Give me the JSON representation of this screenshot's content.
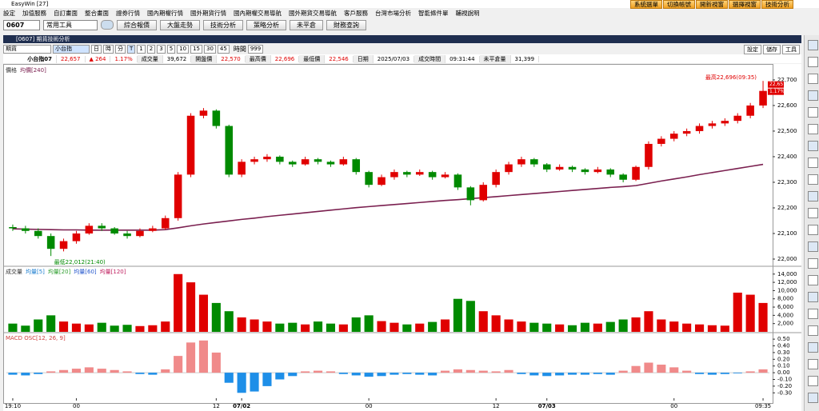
{
  "window": {
    "title": "EasyWin  [27]"
  },
  "menu": [
    "設定",
    "加值服務",
    "自訂畫面",
    "整合畫面",
    "證券行情",
    "國內期權行情",
    "國外期貨行情",
    "國內期權交易導航",
    "國外期貨交易導航",
    "客戶服務",
    "台灣市場分析",
    "智能條件單",
    "輔視說明"
  ],
  "menu_right": [
    "系統選單",
    "切換帳號",
    "開新視窗",
    "選擇視窗",
    "技術分析"
  ],
  "toolbar": {
    "code": "0607",
    "tools": "常用工具",
    "buttons": [
      "綜合報價",
      "大盤走勢",
      "技術分析",
      "策略分析",
      "未平倉",
      "財務查詢"
    ]
  },
  "panel": {
    "title": "[0607] 期貨技術分析",
    "product_type": "期貨",
    "symbol": "小台指",
    "periods": [
      "日",
      "時",
      "分",
      "T",
      "1",
      "2",
      "3",
      "5",
      "10",
      "15",
      "30",
      "45"
    ],
    "count_label": "時間",
    "count": "999",
    "actions": [
      "設定",
      "儲存",
      "工具"
    ]
  },
  "quote": {
    "name": "小台指07",
    "last": "22,657",
    "change": "▲ 264",
    "pct": "1.17%",
    "fields": [
      {
        "label": "成交量",
        "value": "39,672"
      },
      {
        "label": "開盤價",
        "value": "22,570"
      },
      {
        "label": "最高價",
        "value": "22,696"
      },
      {
        "label": "最低價",
        "value": "22,546"
      },
      {
        "label": "日期",
        "value": "2025/07/03"
      },
      {
        "label": "成交時間",
        "value": "09:31:44"
      },
      {
        "label": "未平倉量",
        "value": "31,399"
      }
    ]
  },
  "chart_data": [
    {
      "type": "candlestick",
      "title": "價格",
      "up_color": "#e00000",
      "down_color": "#008a00",
      "open": [
        22125,
        22120,
        22110,
        22090,
        22040,
        22070,
        22100,
        22130,
        22120,
        22100,
        22090,
        22110,
        22120,
        22160,
        22330,
        22560,
        22580,
        22520,
        22330,
        22380,
        22390,
        22400,
        22380,
        22370,
        22390,
        22380,
        22370,
        22390,
        22340,
        22290,
        22320,
        22340,
        22330,
        22340,
        22320,
        22330,
        22280,
        22230,
        22290,
        22340,
        22370,
        22390,
        22370,
        22350,
        22360,
        22350,
        22340,
        22350,
        22330,
        22310,
        22360,
        22450,
        22470,
        22490,
        22500,
        22520,
        22530,
        22540,
        22560,
        22600
      ],
      "high": [
        22135,
        22130,
        22120,
        22100,
        22080,
        22110,
        22140,
        22140,
        22125,
        22110,
        22120,
        22130,
        22170,
        22340,
        22570,
        22590,
        22585,
        22525,
        22390,
        22400,
        22410,
        22405,
        22385,
        22400,
        22395,
        22385,
        22400,
        22395,
        22345,
        22330,
        22350,
        22345,
        22350,
        22345,
        22340,
        22335,
        22285,
        22300,
        22350,
        22380,
        22400,
        22395,
        22375,
        22370,
        22365,
        22355,
        22360,
        22355,
        22335,
        22365,
        22460,
        22480,
        22500,
        22510,
        22530,
        22540,
        22550,
        22570,
        22610,
        22696
      ],
      "low": [
        22110,
        22100,
        22080,
        22012,
        22030,
        22060,
        22095,
        22110,
        22095,
        22080,
        22085,
        22105,
        22115,
        22150,
        22320,
        22550,
        22510,
        22320,
        22320,
        22370,
        22380,
        22370,
        22360,
        22365,
        22370,
        22360,
        22365,
        22330,
        22280,
        22285,
        22310,
        22320,
        22325,
        22310,
        22315,
        22270,
        22210,
        22225,
        22280,
        22330,
        22360,
        22360,
        22340,
        22345,
        22340,
        22330,
        22335,
        22320,
        22300,
        22305,
        22350,
        22440,
        22460,
        22480,
        22490,
        22510,
        22520,
        22530,
        22550,
        22590
      ],
      "close": [
        22120,
        22110,
        22090,
        22040,
        22070,
        22100,
        22130,
        22120,
        22100,
        22090,
        22110,
        22120,
        22160,
        22330,
        22560,
        22580,
        22520,
        22330,
        22380,
        22390,
        22400,
        22380,
        22370,
        22390,
        22380,
        22370,
        22390,
        22340,
        22290,
        22320,
        22340,
        22330,
        22340,
        22320,
        22330,
        22280,
        22230,
        22290,
        22340,
        22370,
        22390,
        22370,
        22350,
        22360,
        22350,
        22340,
        22350,
        22330,
        22310,
        22360,
        22450,
        22470,
        22490,
        22500,
        22520,
        22530,
        22540,
        22560,
        22600,
        22657
      ],
      "series": [
        {
          "name": "均價[240]",
          "color": "#7a1f4f",
          "values": [
            22118,
            22117,
            22116,
            22115,
            22114,
            22114,
            22113,
            22113,
            22113,
            22113,
            22113,
            22113,
            22115,
            22122,
            22130,
            22137,
            22143,
            22149,
            22155,
            22160,
            22166,
            22171,
            22176,
            22181,
            22186,
            22191,
            22196,
            22201,
            22205,
            22209,
            22213,
            22217,
            22221,
            22225,
            22229,
            22232,
            22236,
            22240,
            22244,
            22248,
            22252,
            22256,
            22260,
            22264,
            22268,
            22272,
            22276,
            22280,
            22283,
            22287,
            22296,
            22305,
            22313,
            22321,
            22330,
            22338,
            22346,
            22354,
            22362,
            22370
          ]
        }
      ],
      "high_label": "最高22,696(09:35)",
      "low_label": "最低22,012(21:40)",
      "last_labels": [
        "22,657",
        "1.17%"
      ],
      "ylim": [
        21975,
        22756
      ],
      "yticks": [
        {
          "value": 22000,
          "label": "22,000"
        },
        {
          "value": 22100,
          "label": "22,100"
        },
        {
          "value": 22200,
          "label": "22,200"
        },
        {
          "value": 22300,
          "label": "22,300"
        },
        {
          "value": 22400,
          "label": "22,400"
        },
        {
          "value": 22500,
          "label": "22,500"
        },
        {
          "value": 22600,
          "label": "22,600"
        },
        {
          "value": 22700,
          "label": "22,700"
        }
      ]
    },
    {
      "type": "volume",
      "title": "成交量",
      "legend": [
        {
          "name": "均量[5]",
          "color": "#1e7fd0"
        },
        {
          "name": "均量[20]",
          "color": "#2e9e2e"
        },
        {
          "name": "均量[60]",
          "color": "#2255cc"
        },
        {
          "name": "均量[120]",
          "color": "#c02060"
        }
      ],
      "values": [
        2000,
        1500,
        3000,
        4000,
        2500,
        2000,
        1800,
        2200,
        1500,
        1700,
        1400,
        1600,
        2500,
        14000,
        12000,
        9000,
        7000,
        5000,
        3500,
        3000,
        2500,
        2000,
        2200,
        1800,
        2500,
        2000,
        1800,
        3500,
        4000,
        2600,
        2200,
        1800,
        2000,
        2400,
        3000,
        8000,
        7500,
        5000,
        4000,
        3000,
        2500,
        2200,
        2000,
        1800,
        1600,
        2200,
        2000,
        2400,
        3000,
        3500,
        5000,
        3000,
        2500,
        2000,
        1800,
        1600,
        1500,
        9500,
        9000,
        7000
      ],
      "ylim": [
        0,
        15700
      ],
      "yticks": [
        {
          "value": 2000,
          "label": "2,000"
        },
        {
          "value": 4000,
          "label": "4,000"
        },
        {
          "value": 6000,
          "label": "6,000"
        },
        {
          "value": 8000,
          "label": "8,000"
        },
        {
          "value": 10000,
          "label": "10,000"
        },
        {
          "value": 12000,
          "label": "12,000"
        },
        {
          "value": 14000,
          "label": "14,000"
        }
      ]
    },
    {
      "type": "oscillator",
      "title": "MACD OSC[12, 26, 9]",
      "pos_color": "#f08a8a",
      "neg_color": "#1e8fe8",
      "values": [
        -0.03,
        -0.04,
        -0.02,
        0.02,
        0.04,
        0.06,
        0.08,
        0.06,
        0.04,
        0.02,
        -0.02,
        -0.03,
        0.05,
        0.25,
        0.45,
        0.48,
        0.3,
        -0.15,
        -0.3,
        -0.28,
        -0.2,
        -0.1,
        -0.05,
        0.02,
        0.03,
        0.02,
        -0.02,
        -0.04,
        -0.06,
        -0.05,
        -0.03,
        -0.02,
        -0.03,
        -0.04,
        0.03,
        0.05,
        0.04,
        0.03,
        0.02,
        0.04,
        -0.02,
        -0.04,
        -0.05,
        -0.04,
        -0.03,
        -0.03,
        -0.02,
        -0.03,
        0.03,
        0.1,
        0.15,
        0.12,
        0.08,
        0.03,
        -0.02,
        -0.03,
        -0.02,
        -0.01,
        0.02,
        0.05
      ],
      "categories": [
        "19:10",
        null,
        null,
        null,
        null,
        "00",
        null,
        null,
        null,
        null,
        null,
        null,
        null,
        null,
        null,
        null,
        "12",
        null,
        "07/02",
        null,
        null,
        null,
        null,
        null,
        null,
        null,
        null,
        null,
        "00",
        null,
        null,
        null,
        null,
        null,
        null,
        null,
        null,
        null,
        "12",
        null,
        null,
        null,
        "07/03",
        null,
        null,
        null,
        null,
        null,
        null,
        null,
        null,
        null,
        "00",
        null,
        null,
        null,
        null,
        null,
        null,
        "09:35"
      ],
      "ylim": [
        -0.38,
        0.585
      ],
      "yticks": [
        {
          "value": -0.3,
          "label": "-0.30"
        },
        {
          "value": -0.2,
          "label": "-0.20"
        },
        {
          "value": -0.1,
          "label": "-0.10"
        },
        {
          "value": 0,
          "label": "0.00"
        },
        {
          "value": 0.1,
          "label": "0.10"
        },
        {
          "value": 0.2,
          "label": "0.20"
        },
        {
          "value": 0.3,
          "label": "0.30"
        },
        {
          "value": 0.4,
          "label": "0.40"
        },
        {
          "value": 0.5,
          "label": "0.50"
        }
      ]
    }
  ]
}
